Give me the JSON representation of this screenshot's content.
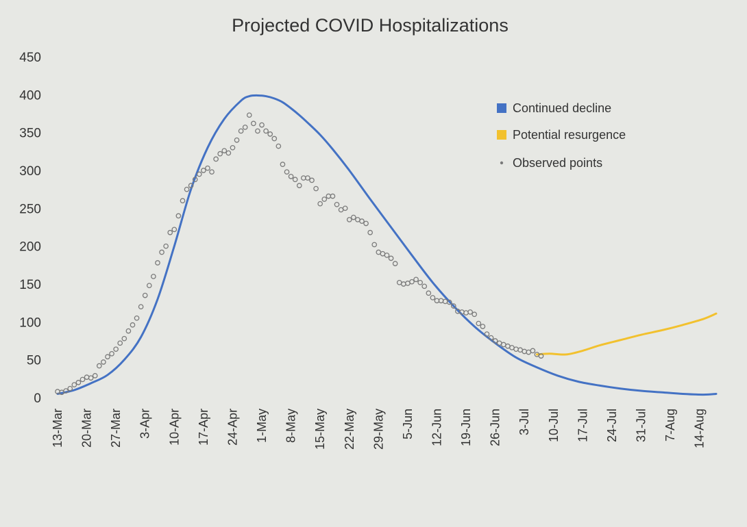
{
  "chart_data": {
    "type": "line",
    "title": "Projected COVID Hospitalizations",
    "xlabel": "",
    "ylabel": "",
    "ylim": [
      0,
      450
    ],
    "yticks": [
      0,
      50,
      100,
      150,
      200,
      250,
      300,
      350,
      400,
      450
    ],
    "x_unit": "days since 13-Mar",
    "xlim": [
      0,
      158
    ],
    "categories": [
      "13-Mar",
      "20-Mar",
      "27-Mar",
      "3-Apr",
      "10-Apr",
      "17-Apr",
      "24-Apr",
      "1-May",
      "8-May",
      "15-May",
      "22-May",
      "29-May",
      "5-Jun",
      "12-Jun",
      "19-Jun",
      "26-Jun",
      "3-Jul",
      "10-Jul",
      "17-Jul",
      "24-Jul",
      "31-Jul",
      "7-Aug",
      "14-Aug"
    ],
    "legend_position": "right",
    "series": [
      {
        "name": "Continued decline",
        "kind": "line",
        "color": "#4472c4",
        "x": [
          0,
          4,
          8,
          12,
          16,
          20,
          24,
          28,
          32,
          36,
          40,
          44,
          46,
          48,
          50,
          52,
          54,
          56,
          58,
          60,
          63,
          66,
          70,
          75,
          80,
          85,
          90,
          95,
          100,
          105,
          110,
          115,
          120,
          125,
          130,
          135,
          140,
          145,
          150,
          155,
          158
        ],
        "y": [
          5,
          10,
          19,
          30,
          50,
          80,
          130,
          200,
          275,
          330,
          368,
          392,
          398,
          399,
          398,
          395,
          390,
          382,
          373,
          363,
          347,
          328,
          300,
          262,
          225,
          188,
          152,
          121,
          94,
          72,
          53,
          40,
          29,
          21,
          16,
          12,
          9,
          7,
          5,
          4,
          5
        ]
      },
      {
        "name": "Potential resurgence",
        "kind": "line",
        "color": "#f2c12e",
        "x": [
          115,
          118,
          122,
          126,
          130,
          135,
          140,
          145,
          150,
          155,
          158
        ],
        "y": [
          57,
          58,
          57,
          62,
          69,
          76,
          83,
          89,
          96,
          104,
          111
        ]
      },
      {
        "name": "Observed points",
        "kind": "scatter",
        "color": "#7a7a7a",
        "x": [
          0,
          1,
          2,
          3,
          4,
          5,
          6,
          7,
          8,
          9,
          10,
          11,
          12,
          13,
          14,
          15,
          16,
          17,
          18,
          19,
          20,
          21,
          22,
          23,
          24,
          25,
          26,
          27,
          28,
          29,
          30,
          31,
          32,
          33,
          34,
          35,
          36,
          37,
          38,
          39,
          40,
          41,
          42,
          43,
          44,
          45,
          46,
          47,
          48,
          49,
          50,
          51,
          52,
          53,
          54,
          55,
          56,
          57,
          58,
          59,
          60,
          61,
          62,
          63,
          64,
          65,
          66,
          67,
          68,
          69,
          70,
          71,
          72,
          73,
          74,
          75,
          76,
          77,
          78,
          79,
          80,
          81,
          82,
          83,
          84,
          85,
          86,
          87,
          88,
          89,
          90,
          91,
          92,
          93,
          94,
          95,
          96,
          97,
          98,
          99,
          100,
          101,
          102,
          103,
          104,
          105,
          106,
          107,
          108,
          109,
          110,
          111,
          112,
          113,
          114,
          115,
          116
        ],
        "y": [
          8,
          7,
          9,
          12,
          17,
          20,
          24,
          27,
          26,
          29,
          42,
          47,
          54,
          58,
          64,
          72,
          78,
          88,
          96,
          105,
          120,
          135,
          148,
          160,
          178,
          192,
          200,
          218,
          222,
          240,
          260,
          275,
          280,
          288,
          295,
          300,
          303,
          298,
          315,
          322,
          326,
          323,
          330,
          340,
          352,
          357,
          373,
          362,
          352,
          360,
          352,
          348,
          342,
          332,
          308,
          298,
          292,
          288,
          280,
          290,
          290,
          287,
          276,
          256,
          262,
          266,
          266,
          255,
          248,
          250,
          235,
          238,
          235,
          233,
          230,
          218,
          202,
          192,
          190,
          188,
          184,
          177,
          152,
          150,
          151,
          153,
          156,
          152,
          147,
          138,
          132,
          128,
          128,
          127,
          126,
          121,
          114,
          113,
          112,
          113,
          110,
          98,
          94,
          84,
          79,
          75,
          72,
          70,
          68,
          66,
          64,
          63,
          61,
          60,
          62,
          57,
          55
        ]
      }
    ]
  }
}
